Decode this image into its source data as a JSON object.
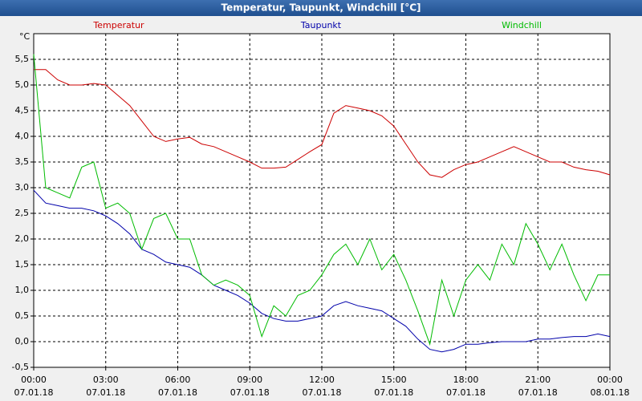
{
  "chart_data": {
    "type": "line",
    "title": "Temperatur, Taupunkt, Windchill [°C]",
    "y_unit": "°C",
    "x": [
      0,
      0.5,
      1,
      1.5,
      2,
      2.5,
      3,
      3.5,
      4,
      4.5,
      5,
      5.5,
      6,
      6.5,
      7,
      7.5,
      8,
      8.5,
      9,
      9.5,
      10,
      10.5,
      11,
      11.5,
      12,
      12.5,
      13,
      13.5,
      14,
      14.5,
      15,
      15.5,
      16,
      16.5,
      17,
      17.5,
      18,
      18.5,
      19,
      19.5,
      20,
      20.5,
      21,
      21.5,
      22,
      22.5,
      23,
      23.5,
      24
    ],
    "series": [
      {
        "name": "Temperatur",
        "color": "#cc0000",
        "values": [
          5.3,
          5.3,
          5.1,
          5.0,
          5.0,
          5.03,
          5.0,
          4.8,
          4.6,
          4.3,
          4.0,
          3.9,
          3.95,
          3.98,
          3.85,
          3.8,
          3.7,
          3.6,
          3.5,
          3.38,
          3.38,
          3.4,
          3.55,
          3.7,
          3.84,
          4.45,
          4.6,
          4.55,
          4.5,
          4.4,
          4.2,
          3.85,
          3.5,
          3.25,
          3.2,
          3.35,
          3.45,
          3.5,
          3.6,
          3.7,
          3.8,
          3.7,
          3.6,
          3.5,
          3.5,
          3.4,
          3.35,
          3.32,
          3.25
        ]
      },
      {
        "name": "Taupunkt",
        "color": "#0000aa",
        "values": [
          2.95,
          2.7,
          2.65,
          2.6,
          2.6,
          2.55,
          2.45,
          2.3,
          2.1,
          1.8,
          1.7,
          1.55,
          1.5,
          1.45,
          1.3,
          1.1,
          1.0,
          0.9,
          0.75,
          0.55,
          0.45,
          0.4,
          0.4,
          0.45,
          0.5,
          0.7,
          0.78,
          0.7,
          0.65,
          0.6,
          0.45,
          0.3,
          0.05,
          -0.15,
          -0.2,
          -0.15,
          -0.05,
          -0.05,
          -0.02,
          0.0,
          0.0,
          0.0,
          0.05,
          0.05,
          0.08,
          0.1,
          0.1,
          0.15,
          0.1
        ]
      },
      {
        "name": "Windchill",
        "color": "#00bb00",
        "values": [
          5.6,
          3.0,
          2.9,
          2.8,
          3.4,
          3.5,
          2.6,
          2.7,
          2.5,
          1.8,
          2.4,
          2.5,
          2.0,
          2.0,
          1.3,
          1.1,
          1.2,
          1.1,
          0.9,
          0.1,
          0.7,
          0.5,
          0.9,
          1.0,
          1.3,
          1.7,
          1.9,
          1.5,
          2.0,
          1.4,
          1.7,
          1.2,
          0.6,
          -0.05,
          1.2,
          0.5,
          1.2,
          1.5,
          1.2,
          1.9,
          1.5,
          2.3,
          1.9,
          1.4,
          1.9,
          1.3,
          0.8,
          1.3,
          1.3
        ]
      }
    ],
    "xlim": [
      0,
      24
    ],
    "xticks": [
      {
        "value": 0,
        "label": "00:00"
      },
      {
        "value": 3,
        "label": "03:00"
      },
      {
        "value": 6,
        "label": "06:00"
      },
      {
        "value": 9,
        "label": "09:00"
      },
      {
        "value": 12,
        "label": "12:00"
      },
      {
        "value": 15,
        "label": "15:00"
      },
      {
        "value": 18,
        "label": "18:00"
      },
      {
        "value": 21,
        "label": "21:00"
      },
      {
        "value": 24,
        "label": "00:00"
      }
    ],
    "xtick_dates": [
      "07.01.18",
      "07.01.18",
      "07.01.18",
      "07.01.18",
      "07.01.18",
      "07.01.18",
      "07.01.18",
      "07.01.18",
      "08.01.18"
    ],
    "ylim": [
      -0.5,
      6.0
    ],
    "yticks": [
      {
        "value": -0.5,
        "label": "-0,5"
      },
      {
        "value": 0,
        "label": "0,0"
      },
      {
        "value": 0.5,
        "label": "0,5"
      },
      {
        "value": 1,
        "label": "1,0"
      },
      {
        "value": 1.5,
        "label": "1,5"
      },
      {
        "value": 2,
        "label": "2,0"
      },
      {
        "value": 2.5,
        "label": "2,5"
      },
      {
        "value": 3,
        "label": "3,0"
      },
      {
        "value": 3.5,
        "label": "3,5"
      },
      {
        "value": 4,
        "label": "4,0"
      },
      {
        "value": 4.5,
        "label": "4,5"
      },
      {
        "value": 5,
        "label": "5,0"
      },
      {
        "value": 5.5,
        "label": "5,5"
      }
    ],
    "grid": true
  }
}
